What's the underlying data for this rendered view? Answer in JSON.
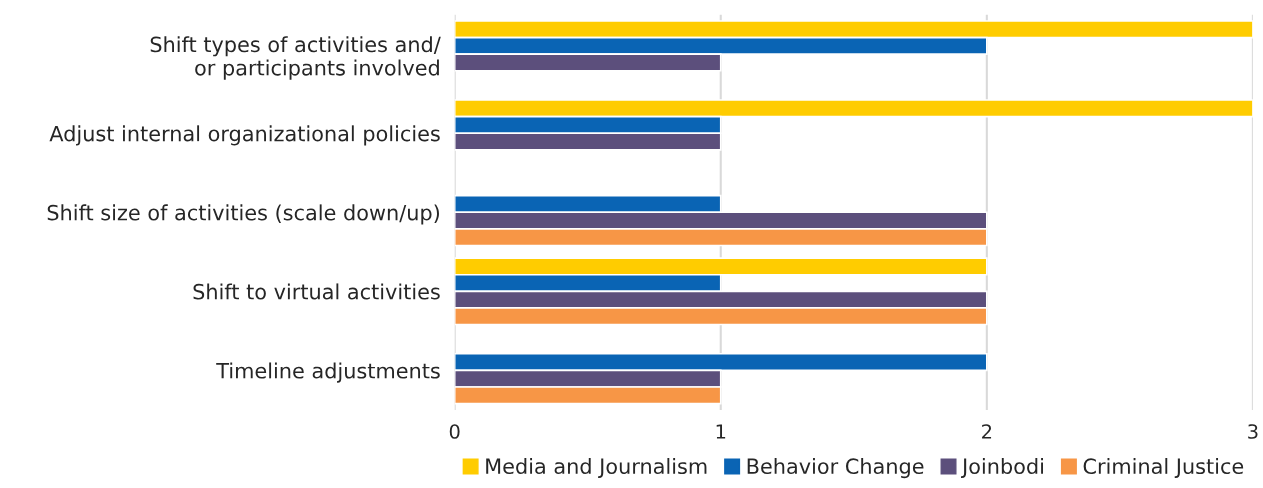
{
  "chart_data": {
    "type": "bar",
    "orientation": "horizontal",
    "categories": [
      "Shift types of activities and/\nor participants involved",
      "Adjust internal organizational policies",
      "Shift size of activities (scale down/up)",
      "Shift to virtual activities",
      "Timeline adjustments"
    ],
    "series": [
      {
        "name": "Media and Journalism",
        "color": "#ffcc00",
        "values": [
          3,
          3,
          null,
          2,
          null
        ]
      },
      {
        "name": "Behavior Change",
        "color": "#0a64b4",
        "values": [
          2,
          1,
          1,
          1,
          2
        ]
      },
      {
        "name": "Joinbodi",
        "color": "#5c4f7c",
        "values": [
          1,
          1,
          2,
          2,
          1
        ]
      },
      {
        "name": "Criminal Justice",
        "color": "#f79646",
        "values": [
          null,
          null,
          2,
          2,
          1
        ]
      }
    ],
    "xlim": [
      0,
      3
    ],
    "xticks": [
      0,
      1,
      2,
      3
    ],
    "grid": "x",
    "legend": "bottom"
  }
}
